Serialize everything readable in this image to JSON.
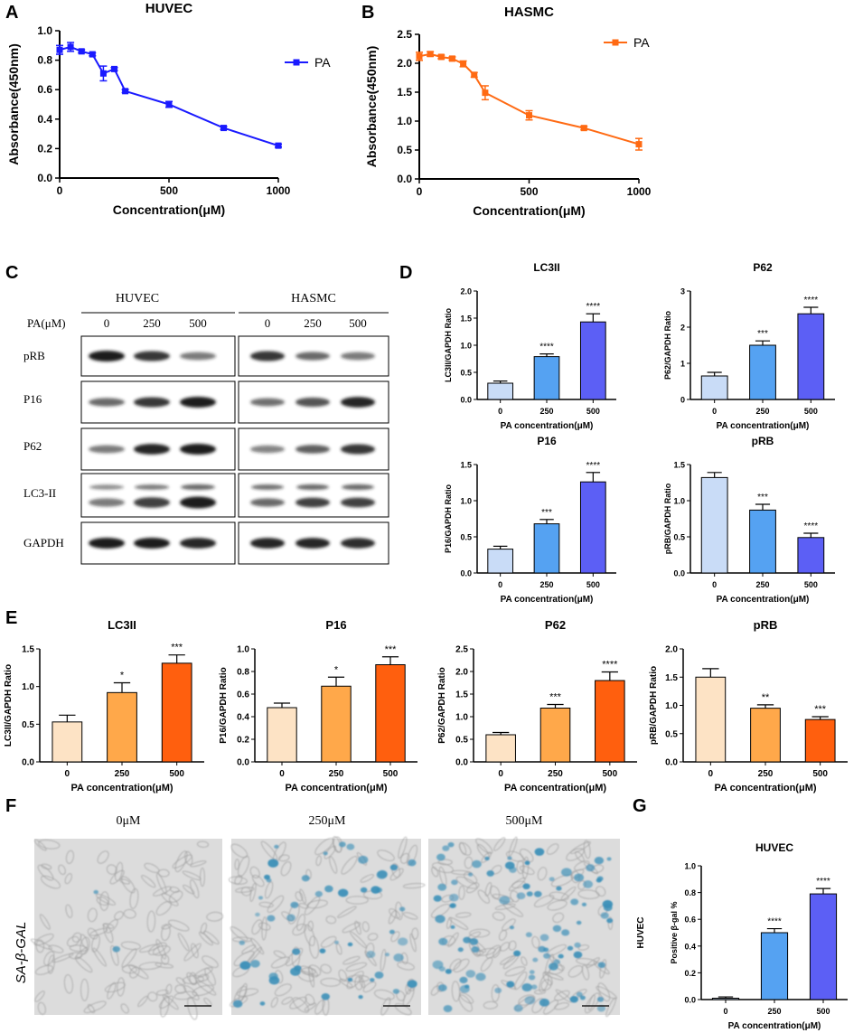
{
  "panels": {
    "A": "A",
    "B": "B",
    "C": "C",
    "D": "D",
    "E": "E",
    "F": "F",
    "G": "G"
  },
  "colors": {
    "blue_line": "#1a1aff",
    "orange_line": "#ff6a13",
    "blue_bars": [
      "#c9dcf7",
      "#55a2f2",
      "#5c5ff5"
    ],
    "orange_bars": [
      "#fde3c5",
      "#ffa84a",
      "#ff5f0e"
    ],
    "blot_band": "#1e1e1e",
    "stain_blue": "#3a8fb8",
    "sa_label": "#3e93b8"
  },
  "blot": {
    "header_huvec": "HUVEC",
    "header_hasmc": "HASMC",
    "pa_label": "PA(μM)",
    "conc": [
      "0",
      "250",
      "500"
    ],
    "rows": [
      "pRB",
      "P16",
      "P62",
      "LC3-II",
      "GAPDH"
    ]
  },
  "micro": {
    "labels": [
      "0μM",
      "250μM",
      "500μM"
    ],
    "side_label": "SA-β-GAL",
    "stain_density": [
      0.02,
      0.45,
      0.8
    ]
  },
  "chart_data": [
    {
      "id": "A",
      "type": "line",
      "title": "HUVEC",
      "xlabel": "Concentration(μM)",
      "ylabel": "Absorbance(450nm)",
      "xlim": [
        0,
        1000
      ],
      "ylim": [
        0,
        1.0
      ],
      "xticks": [
        0,
        500,
        1000
      ],
      "yticks": [
        0.0,
        0.2,
        0.4,
        0.6,
        0.8,
        1.0
      ],
      "ytick_labels": [
        "0.0",
        "0.2",
        "0.4",
        "0.6",
        "0.8",
        "1.0"
      ],
      "series": [
        {
          "name": "PA",
          "color": "#1a1aff",
          "x": [
            0,
            50,
            100,
            150,
            200,
            250,
            300,
            500,
            750,
            1000
          ],
          "y": [
            0.87,
            0.89,
            0.86,
            0.84,
            0.71,
            0.74,
            0.59,
            0.5,
            0.34,
            0.22
          ],
          "err": [
            0.03,
            0.03,
            0.01,
            0.01,
            0.05,
            0.01,
            0.01,
            0.02,
            0.01,
            0.01
          ]
        }
      ]
    },
    {
      "id": "B",
      "type": "line",
      "title": "HASMC",
      "xlabel": "Concentration(μM)",
      "ylabel": "Absorbance(450nm)",
      "xlim": [
        0,
        1000
      ],
      "ylim": [
        0,
        2.5
      ],
      "xticks": [
        0,
        500,
        1000
      ],
      "yticks": [
        0.0,
        0.5,
        1.0,
        1.5,
        2.0,
        2.5
      ],
      "ytick_labels": [
        "0.0",
        "0.5",
        "1.0",
        "1.5",
        "2.0",
        "2.5"
      ],
      "series": [
        {
          "name": "PA",
          "color": "#ff6a13",
          "x": [
            0,
            50,
            100,
            150,
            200,
            250,
            300,
            500,
            750,
            1000
          ],
          "y": [
            2.12,
            2.16,
            2.11,
            2.08,
            1.99,
            1.8,
            1.49,
            1.1,
            0.88,
            0.6
          ],
          "err": [
            0.07,
            0.04,
            0.03,
            0.03,
            0.05,
            0.04,
            0.12,
            0.08,
            0.03,
            0.1
          ]
        }
      ]
    },
    {
      "id": "D1",
      "type": "bar",
      "title": "LC3II",
      "xlabel": "PA concentration(μM)",
      "ylabel": "LC3II/GAPDH Ratio",
      "categories": [
        "0",
        "250",
        "500"
      ],
      "values": [
        0.3,
        0.79,
        1.43
      ],
      "err": [
        0.04,
        0.05,
        0.15
      ],
      "sig": [
        "",
        "****",
        "****"
      ],
      "ylim": [
        0,
        2.0
      ],
      "yticks": [
        0,
        0.5,
        1.0,
        1.5,
        2.0
      ],
      "ytick_labels": [
        "0.0",
        "0.5",
        "1.0",
        "1.5",
        "2.0"
      ],
      "palette": "blue"
    },
    {
      "id": "D2",
      "type": "bar",
      "title": "P62",
      "xlabel": "PA concentration(μM)",
      "ylabel": "P62/GAPDH Ratio",
      "categories": [
        "0",
        "250",
        "500"
      ],
      "values": [
        0.65,
        1.5,
        2.37
      ],
      "err": [
        0.1,
        0.12,
        0.18
      ],
      "sig": [
        "",
        "***",
        "****"
      ],
      "ylim": [
        0,
        3
      ],
      "yticks": [
        0,
        1,
        2,
        3
      ],
      "ytick_labels": [
        "0",
        "1",
        "2",
        "3"
      ],
      "palette": "blue"
    },
    {
      "id": "D3",
      "type": "bar",
      "title": "P16",
      "xlabel": "PA concentration(μM)",
      "ylabel": "P16/GAPDH Ratio",
      "categories": [
        "0",
        "250",
        "500"
      ],
      "values": [
        0.33,
        0.68,
        1.26
      ],
      "err": [
        0.04,
        0.06,
        0.13
      ],
      "sig": [
        "",
        "***",
        "****"
      ],
      "ylim": [
        0,
        1.5
      ],
      "yticks": [
        0,
        0.5,
        1.0,
        1.5
      ],
      "ytick_labels": [
        "0.0",
        "0.5",
        "1.0",
        "1.5"
      ],
      "palette": "blue"
    },
    {
      "id": "D4",
      "type": "bar",
      "title": "pRB",
      "xlabel": "PA concentration(μM)",
      "ylabel": "pRB/GAPDH Ratio",
      "categories": [
        "0",
        "250",
        "500"
      ],
      "values": [
        1.32,
        0.87,
        0.49
      ],
      "err": [
        0.07,
        0.08,
        0.06
      ],
      "sig": [
        "",
        "***",
        "****"
      ],
      "ylim": [
        0,
        1.5
      ],
      "yticks": [
        0,
        0.5,
        1.0,
        1.5
      ],
      "ytick_labels": [
        "0.0",
        "0.5",
        "1.0",
        "1.5"
      ],
      "palette": "blue"
    },
    {
      "id": "E1",
      "type": "bar",
      "title": "LC3II",
      "xlabel": "PA concentration(μM)",
      "ylabel": "LC3II/GAPDH Ratio",
      "categories": [
        "0",
        "250",
        "500"
      ],
      "values": [
        0.53,
        0.92,
        1.31
      ],
      "err": [
        0.09,
        0.13,
        0.11
      ],
      "sig": [
        "",
        "*",
        "***"
      ],
      "ylim": [
        0,
        1.5
      ],
      "yticks": [
        0,
        0.5,
        1.0,
        1.5
      ],
      "ytick_labels": [
        "0.0",
        "0.5",
        "1.0",
        "1.5"
      ],
      "palette": "orange"
    },
    {
      "id": "E2",
      "type": "bar",
      "title": "P16",
      "xlabel": "PA concentration(μM)",
      "ylabel": "P16/GAPDH Ratio",
      "categories": [
        "0",
        "250",
        "500"
      ],
      "values": [
        0.48,
        0.67,
        0.86
      ],
      "err": [
        0.04,
        0.08,
        0.07
      ],
      "sig": [
        "",
        "*",
        "***"
      ],
      "ylim": [
        0,
        1.0
      ],
      "yticks": [
        0,
        0.2,
        0.4,
        0.6,
        0.8,
        1.0
      ],
      "ytick_labels": [
        "0.0",
        "0.2",
        "0.4",
        "0.6",
        "0.8",
        "1.0"
      ],
      "palette": "orange"
    },
    {
      "id": "E3",
      "type": "bar",
      "title": "P62",
      "xlabel": "PA concentration(μM)",
      "ylabel": "P62/GAPDH Ratio",
      "categories": [
        "0",
        "250",
        "500"
      ],
      "values": [
        0.6,
        1.19,
        1.8
      ],
      "err": [
        0.05,
        0.08,
        0.19
      ],
      "sig": [
        "",
        "***",
        "****"
      ],
      "ylim": [
        0,
        2.5
      ],
      "yticks": [
        0,
        0.5,
        1.0,
        1.5,
        2.0,
        2.5
      ],
      "ytick_labels": [
        "0.0",
        "0.5",
        "1.0",
        "1.5",
        "2.0",
        "2.5"
      ],
      "palette": "orange"
    },
    {
      "id": "E4",
      "type": "bar",
      "title": "pRB",
      "xlabel": "PA concentration(μM)",
      "ylabel": "pRB/GAPDH Ratio",
      "categories": [
        "0",
        "250",
        "500"
      ],
      "values": [
        1.5,
        0.95,
        0.75
      ],
      "err": [
        0.15,
        0.06,
        0.05
      ],
      "sig": [
        "",
        "**",
        "***"
      ],
      "ylim": [
        0,
        2.0
      ],
      "yticks": [
        0,
        0.5,
        1.0,
        1.5,
        2.0
      ],
      "ytick_labels": [
        "0.0",
        "0.5",
        "1.0",
        "1.5",
        "2.0"
      ],
      "palette": "orange"
    },
    {
      "id": "G",
      "type": "bar",
      "title": "HUVEC",
      "xlabel": "PA concentration(μM)",
      "ylabel": "Positive β-gal %",
      "side_label": "HUVEC",
      "categories": [
        "0",
        "250",
        "500"
      ],
      "values": [
        0.01,
        0.5,
        0.79
      ],
      "err": [
        0.01,
        0.03,
        0.04
      ],
      "sig": [
        "",
        "****",
        "****"
      ],
      "ylim": [
        0,
        1.0
      ],
      "yticks": [
        0,
        0.2,
        0.4,
        0.6,
        0.8,
        1.0
      ],
      "ytick_labels": [
        "0.0",
        "0.2",
        "0.4",
        "0.6",
        "0.8",
        "1.0"
      ],
      "palette": "blue"
    }
  ]
}
